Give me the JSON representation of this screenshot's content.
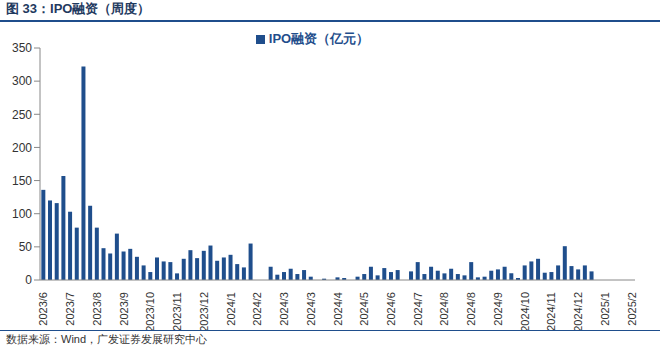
{
  "chart_data": {
    "type": "bar",
    "title": "图 33：IPO融资（周度）",
    "annotations": [
      "数据来源：Wind，广发证券发展研究中心"
    ],
    "categories": [
      "2023/6",
      null,
      null,
      null,
      "2023/7",
      null,
      null,
      null,
      "2023/8",
      null,
      null,
      null,
      "2023/9",
      null,
      null,
      null,
      "2023/10",
      null,
      null,
      null,
      "2023/11",
      null,
      null,
      null,
      "2023/12",
      null,
      null,
      null,
      "2024/1",
      null,
      null,
      null,
      "2024/2",
      null,
      null,
      null,
      "2024/3",
      null,
      null,
      null,
      "2024/3",
      null,
      null,
      null,
      "2024/4",
      null,
      null,
      null,
      "2024/5",
      null,
      null,
      null,
      "2024/6",
      null,
      null,
      null,
      "2024/7",
      null,
      null,
      null,
      "2024/8",
      null,
      null,
      null,
      "2024/8",
      null,
      null,
      null,
      "2024/9",
      null,
      null,
      null,
      "2024/10",
      null,
      null,
      null,
      "2024/11",
      null,
      null,
      null,
      "2024/12",
      null,
      null,
      null,
      "2025/1",
      null,
      null,
      null,
      "2025/2"
    ],
    "series": [
      {
        "name": "IPO融资（亿元）",
        "color": "#1f4e8c",
        "values": [
          136,
          120,
          116,
          157,
          103,
          79,
          322,
          112,
          79,
          48,
          40,
          70,
          43,
          47,
          35,
          22,
          12,
          34,
          28,
          27,
          10,
          32,
          45,
          33,
          44,
          52,
          29,
          34,
          38,
          24,
          19,
          55,
          0,
          0,
          20,
          8,
          12,
          17,
          9,
          15,
          5,
          0,
          2,
          0,
          4,
          3,
          0,
          5,
          9,
          20,
          7,
          18,
          12,
          15,
          0,
          13,
          27,
          9,
          20,
          14,
          10,
          17,
          9,
          7,
          27,
          4,
          5,
          14,
          16,
          20,
          10,
          3,
          22,
          28,
          32,
          11,
          12,
          22,
          51,
          21,
          16,
          22,
          13,
          0,
          0,
          0,
          0,
          0,
          0
        ]
      }
    ],
    "ylim": [
      0,
      350
    ],
    "yticks": [
      0,
      50,
      100,
      150,
      200,
      250,
      300,
      350
    ],
    "grid": false,
    "legend": "top"
  }
}
